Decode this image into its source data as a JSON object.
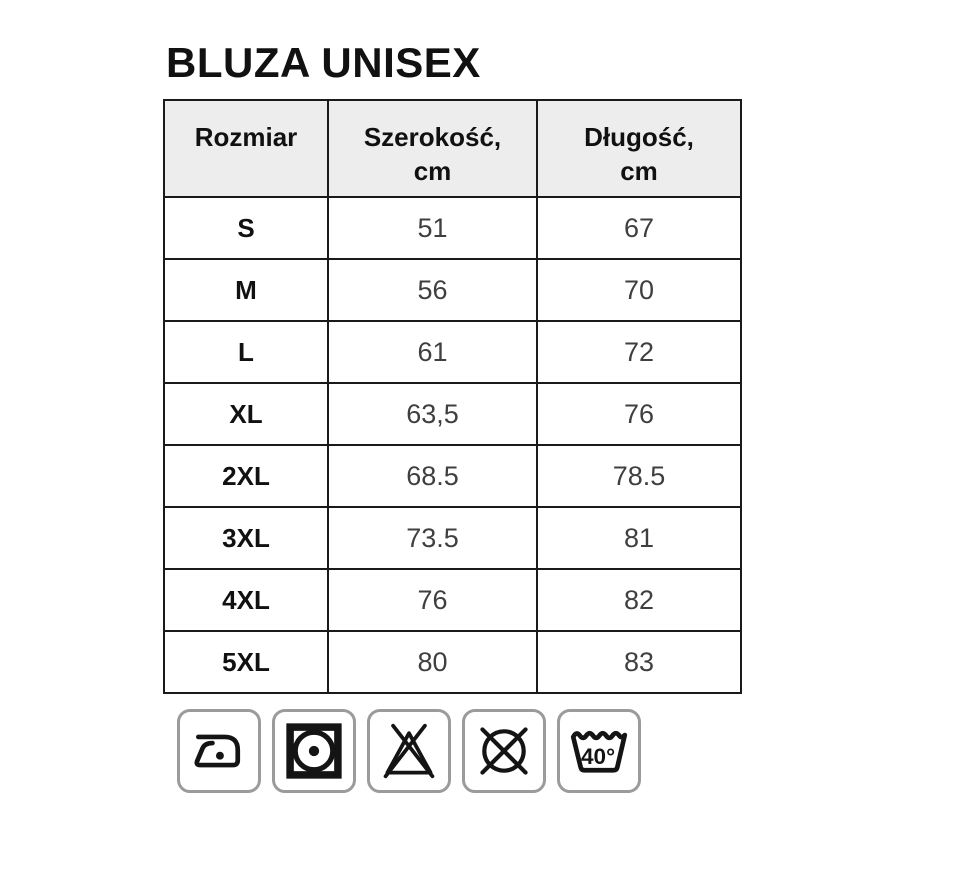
{
  "page": {
    "title": "BLUZA UNISEX"
  },
  "chart_data": {
    "type": "table",
    "title": "BLUZA UNISEX",
    "columns": [
      "Rozmiar",
      "Szerokość, cm",
      "Długość, cm"
    ],
    "rows": [
      [
        "S",
        "51",
        "67"
      ],
      [
        "M",
        "56",
        "70"
      ],
      [
        "L",
        "61",
        "72"
      ],
      [
        "XL",
        "63,5",
        "76"
      ],
      [
        "2XL",
        "68.5",
        "78.5"
      ],
      [
        "3XL",
        "73.5",
        "81"
      ],
      [
        "4XL",
        "76",
        "82"
      ],
      [
        "5XL",
        "80",
        "83"
      ]
    ]
  },
  "care": {
    "icons": [
      "iron-one-dot-icon",
      "tumble-dry-icon",
      "do-not-bleach-icon",
      "do-not-dry-clean-icon",
      "wash-40-icon"
    ],
    "wash_temp": "40°"
  },
  "colors": {
    "header_bg": "#ededed",
    "table_border": "#1a1a1a",
    "value_text": "#3f3f3f",
    "icon_border": "#9b9b9b",
    "glyph": "#141414"
  }
}
